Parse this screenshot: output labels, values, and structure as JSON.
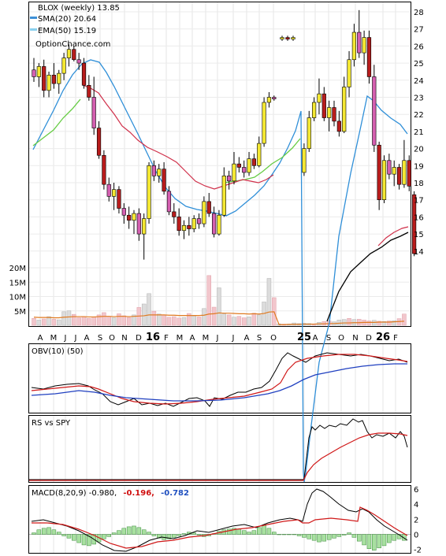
{
  "chart_data": [
    {
      "type": "candlestick",
      "panel": "price",
      "title": "BLOX (weekly) 13.85",
      "legend": [
        {
          "name": "SMA(20) 20.64",
          "color": "#3d8fd6"
        },
        {
          "name": "EMA(50) 15.19",
          "color": "#8ad0ee"
        }
      ],
      "watermark": "OptionChance.com",
      "overlay_colors": {
        "sma20": "#2f8fd8",
        "ema50_early": "#66cc44",
        "ema50_late": "#000000",
        "ma_red": "#d0304a"
      },
      "ylim": [
        13,
        28.5
      ],
      "yticks": [
        "28",
        "27",
        "26",
        "25",
        "24",
        "23",
        "22",
        "21",
        "20",
        "19",
        "18",
        "17",
        "16",
        "15",
        "14"
      ],
      "x_labels": [
        "A",
        "M",
        "J",
        "J",
        "A",
        "S",
        "O",
        "N",
        "D",
        "16",
        "F",
        "M",
        "A",
        "M",
        "J",
        "J",
        "A",
        "S",
        "O",
        "25",
        "A",
        "S",
        "O",
        "N",
        "D",
        "26",
        "F"
      ],
      "ohlc": [
        [
          24.6,
          25.3,
          23.9,
          24.2
        ],
        [
          24.2,
          25.0,
          23.6,
          24.8
        ],
        [
          24.8,
          25.2,
          23.0,
          23.4
        ],
        [
          23.4,
          24.5,
          23.0,
          24.3
        ],
        [
          24.3,
          25.0,
          23.5,
          23.8
        ],
        [
          23.8,
          24.6,
          23.2,
          24.4
        ],
        [
          24.4,
          25.6,
          24.0,
          25.3
        ],
        [
          25.3,
          26.1,
          24.8,
          25.8
        ],
        [
          25.8,
          26.0,
          25.1,
          25.2
        ],
        [
          25.2,
          25.6,
          24.6,
          25.0
        ],
        [
          25.0,
          25.3,
          23.5,
          23.7
        ],
        [
          23.7,
          24.3,
          22.8,
          23.0
        ],
        [
          23.0,
          24.2,
          20.8,
          21.2
        ],
        [
          21.2,
          21.6,
          19.4,
          19.6
        ],
        [
          19.6,
          19.9,
          17.6,
          17.9
        ],
        [
          17.9,
          18.3,
          16.9,
          17.2
        ],
        [
          17.2,
          18.0,
          16.4,
          17.6
        ],
        [
          17.6,
          17.8,
          16.2,
          16.5
        ],
        [
          16.5,
          16.8,
          15.6,
          16.1
        ],
        [
          16.1,
          16.6,
          15.3,
          15.8
        ],
        [
          15.8,
          16.4,
          15.0,
          16.2
        ],
        [
          16.2,
          16.5,
          14.6,
          15.0
        ],
        [
          15.0,
          16.2,
          13.5,
          15.9
        ],
        [
          15.9,
          19.2,
          15.6,
          19.0
        ],
        [
          19.0,
          19.3,
          18.1,
          18.4
        ],
        [
          18.4,
          19.1,
          18.0,
          18.8
        ],
        [
          18.8,
          19.2,
          17.3,
          17.5
        ],
        [
          17.5,
          17.8,
          16.1,
          16.3
        ],
        [
          16.3,
          16.8,
          15.6,
          16.0
        ],
        [
          16.0,
          16.5,
          14.9,
          15.2
        ],
        [
          15.2,
          15.8,
          14.7,
          15.5
        ],
        [
          15.5,
          16.0,
          14.9,
          15.3
        ],
        [
          15.3,
          16.1,
          15.1,
          15.9
        ],
        [
          15.9,
          16.2,
          15.3,
          15.6
        ],
        [
          15.6,
          17.2,
          15.4,
          16.9
        ],
        [
          16.9,
          17.4,
          16.0,
          16.2
        ],
        [
          16.2,
          16.6,
          14.8,
          15.0
        ],
        [
          15.0,
          16.4,
          14.9,
          16.1
        ],
        [
          16.1,
          18.9,
          16.0,
          18.4
        ],
        [
          18.4,
          18.7,
          17.6,
          18.1
        ],
        [
          18.1,
          19.8,
          17.9,
          19.1
        ],
        [
          19.1,
          19.5,
          18.6,
          18.9
        ],
        [
          18.9,
          19.3,
          18.3,
          18.6
        ],
        [
          18.6,
          19.8,
          18.4,
          19.4
        ],
        [
          19.4,
          19.7,
          18.8,
          19.0
        ],
        [
          19.0,
          20.7,
          18.9,
          20.3
        ],
        [
          20.3,
          23.0,
          20.1,
          22.7
        ],
        [
          22.7,
          23.3,
          22.4,
          23.0
        ],
        [
          23.0,
          23.1,
          22.8,
          22.9
        ],
        [
          26.4,
          26.6,
          26.3,
          26.5
        ],
        [
          26.5,
          26.6,
          26.3,
          26.4
        ],
        [
          26.4,
          26.6,
          26.3,
          26.5
        ],
        [
          18.6,
          20.3,
          18.4,
          20.0
        ],
        [
          20.0,
          22.2,
          19.8,
          21.8
        ],
        [
          21.8,
          23.0,
          21.6,
          22.7
        ],
        [
          22.7,
          24.1,
          22.0,
          23.2
        ],
        [
          23.2,
          23.6,
          21.6,
          21.8
        ],
        [
          21.8,
          22.8,
          21.0,
          22.4
        ],
        [
          22.4,
          22.8,
          21.3,
          21.6
        ],
        [
          21.6,
          22.2,
          20.7,
          21.0
        ],
        [
          21.0,
          24.2,
          20.9,
          23.6
        ],
        [
          23.6,
          25.7,
          23.0,
          25.2
        ],
        [
          25.2,
          27.3,
          24.8,
          26.8
        ],
        [
          26.8,
          28.1,
          25.3,
          25.6
        ],
        [
          25.6,
          26.9,
          24.9,
          26.5
        ],
        [
          26.5,
          26.9,
          23.8,
          24.2
        ],
        [
          24.2,
          24.9,
          19.8,
          20.2
        ],
        [
          20.2,
          20.4,
          16.4,
          17.0
        ],
        [
          17.0,
          19.6,
          16.8,
          19.3
        ],
        [
          19.3,
          19.7,
          18.2,
          18.5
        ],
        [
          18.5,
          19.3,
          17.8,
          18.9
        ],
        [
          18.9,
          19.1,
          17.6,
          17.9
        ],
        [
          17.9,
          20.5,
          17.7,
          19.3
        ],
        [
          19.3,
          19.6,
          17.5,
          17.8
        ],
        [
          17.3,
          17.5,
          13.7,
          13.85
        ]
      ]
    },
    {
      "type": "bar",
      "panel": "volume",
      "yticks": [
        "20M",
        "15M",
        "10M",
        "5M"
      ],
      "ylim": [
        0,
        22
      ],
      "values": [
        2.4,
        1.8,
        2.2,
        3.0,
        2.1,
        1.9,
        4.7,
        5.0,
        3.8,
        2.6,
        3.0,
        2.4,
        2.8,
        3.6,
        4.4,
        3.1,
        2.6,
        4.0,
        3.3,
        2.7,
        3.6,
        6.2,
        7.4,
        11.0,
        4.9,
        3.9,
        3.5,
        2.8,
        3.0,
        2.5,
        2.7,
        4.1,
        3.3,
        2.9,
        5.8,
        17.3,
        6.3,
        13.0,
        3.9,
        3.6,
        2.8,
        3.1,
        2.6,
        2.9,
        4.2,
        3.6,
        8.1,
        16.3,
        9.6,
        0.5,
        0.4,
        0.4,
        0.8,
        0.6,
        0.7,
        0.6,
        0.5,
        1.0,
        1.3,
        1.5,
        1.2,
        1.8,
        2.0,
        2.4,
        2.0,
        2.1,
        1.8,
        1.5,
        1.7,
        1.4,
        1.3,
        1.5,
        1.6,
        2.3,
        3.9
      ],
      "avg": [
        2.8,
        2.7,
        2.7,
        2.7,
        2.6,
        2.6,
        2.8,
        2.9,
        3.0,
        3.0,
        3.0,
        2.9,
        2.9,
        3.0,
        3.1,
        3.1,
        3.0,
        3.1,
        3.1,
        3.0,
        3.1,
        3.2,
        3.3,
        3.6,
        3.6,
        3.6,
        3.6,
        3.5,
        3.5,
        3.4,
        3.4,
        3.4,
        3.4,
        3.4,
        3.5,
        3.9,
        4.0,
        4.3,
        4.2,
        4.2,
        4.1,
        4.0,
        4.0,
        3.9,
        4.0,
        3.9,
        4.1,
        4.6,
        4.7,
        0.2,
        0.2,
        0.3,
        0.3,
        0.3,
        0.4,
        0.4,
        0.4,
        0.5,
        0.5,
        0.6,
        0.6,
        0.7,
        0.8,
        0.8,
        0.9,
        0.9,
        1.0,
        1.0,
        1.0,
        1.1,
        1.1,
        1.1,
        1.2,
        1.3,
        1.4
      ]
    },
    {
      "type": "line",
      "panel": "obv",
      "title": "OBV(10) (50)"
    },
    {
      "type": "line",
      "panel": "rs",
      "title": "RS vs SPY"
    },
    {
      "type": "line",
      "panel": "macd",
      "title_prefix": "MACD(8,20,9) -0.980,",
      "title_value1": "-0.196,",
      "title_value2": "-0.782",
      "yticks": [
        "6",
        "4",
        "2",
        "0",
        "-2"
      ],
      "ylim": [
        -3,
        6.5
      ]
    }
  ]
}
